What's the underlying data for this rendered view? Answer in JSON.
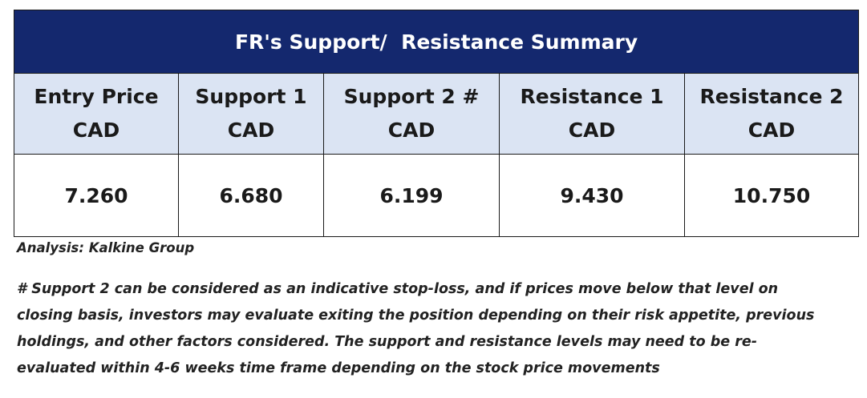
{
  "table": {
    "title": "FR's Support/  Resistance Summary",
    "columns": [
      {
        "label_line1": "Entry Price",
        "label_line2": "CAD",
        "value": "7.260"
      },
      {
        "label_line1": "Support 1",
        "label_line2": "CAD",
        "value": "6.680"
      },
      {
        "label_line1": "Support 2 #",
        "label_line2": "CAD",
        "value": "6.199"
      },
      {
        "label_line1": "Resistance 1",
        "label_line2": "CAD",
        "value": "9.430"
      },
      {
        "label_line1": "Resistance 2",
        "label_line2": "CAD",
        "value": "10.750"
      }
    ]
  },
  "analysis": "Analysis: Kalkine Group",
  "disclaimer_lines": [
    "# Support 2 can be considered as an indicative stop-loss, and if prices move below that level on",
    "closing basis, investors may evaluate exiting the position depending on their risk appetite, previous",
    "holdings, and other factors considered. The support and resistance levels may need to be re-",
    "evaluated within 4-6 weeks time frame depending on the stock price movements"
  ],
  "colors": {
    "title_background": "#14286e",
    "header_background": "#dbe4f3",
    "title_text": "#ffffff"
  }
}
